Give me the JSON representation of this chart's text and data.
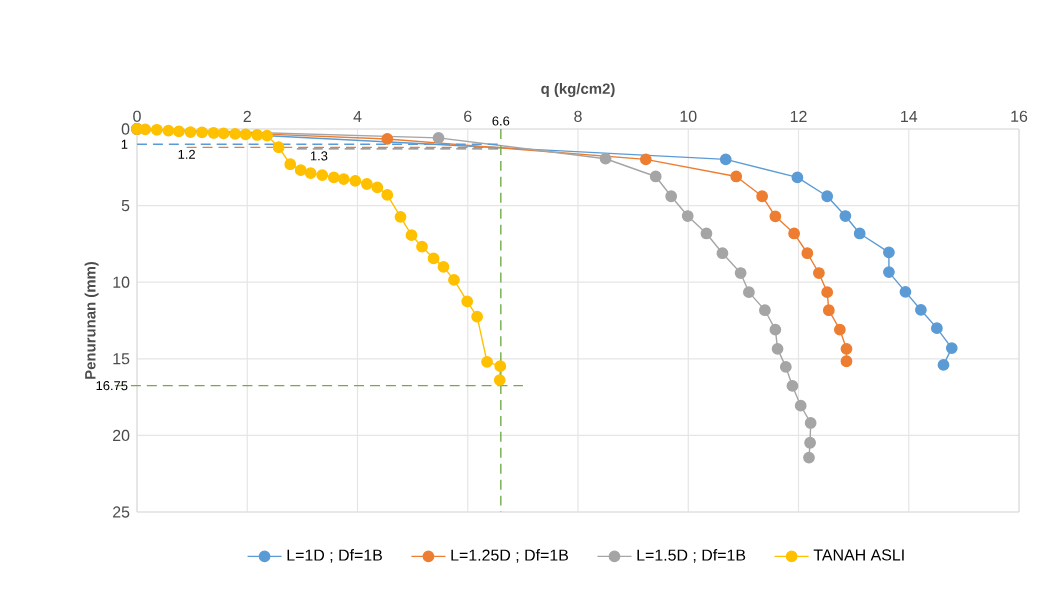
{
  "chart_data": {
    "type": "line",
    "xlabel": "q (kg/cm2)",
    "ylabel": "Penurunan (mm)",
    "xlim": [
      0,
      16
    ],
    "xticks": [
      0,
      2,
      4,
      6,
      8,
      10,
      12,
      14,
      16
    ],
    "ylim": [
      25,
      0
    ],
    "yticks": [
      0,
      5,
      10,
      15,
      20,
      25
    ],
    "grid": true,
    "legend": "bottom",
    "marker": "circle",
    "line_style": "solid",
    "series": [
      {
        "name": "L=1D ; Df=1B",
        "color": "#5b9bd5",
        "x": [
          0,
          10.68,
          11.98,
          12.52,
          12.85,
          13.11,
          13.64,
          13.64,
          13.94,
          14.22,
          14.51,
          14.78,
          14.63
        ],
        "values": [
          0,
          1.98,
          3.16,
          4.39,
          5.68,
          6.82,
          8.05,
          9.34,
          10.63,
          11.81,
          13.0,
          14.3,
          15.4
        ]
      },
      {
        "name": "L=1.25D ; Df=1B",
        "color": "#ed7d31",
        "x": [
          0,
          4.54,
          9.23,
          10.87,
          11.34,
          11.58,
          11.92,
          12.16,
          12.37,
          12.52,
          12.55,
          12.75,
          12.87,
          12.87
        ],
        "values": [
          0,
          0.65,
          1.98,
          3.1,
          4.39,
          5.7,
          6.82,
          8.11,
          9.4,
          10.65,
          11.83,
          13.1,
          14.35,
          15.16
        ]
      },
      {
        "name": "L=1.5D ; Df=1B",
        "color": "#a5a5a5",
        "x": [
          0,
          5.47,
          8.5,
          9.41,
          9.69,
          9.99,
          10.33,
          10.62,
          10.95,
          11.1,
          11.39,
          11.58,
          11.62,
          11.77,
          11.89,
          12.04,
          12.22,
          12.21,
          12.19
        ],
        "values": [
          0,
          0.58,
          1.94,
          3.1,
          4.39,
          5.68,
          6.82,
          8.11,
          9.4,
          10.65,
          11.83,
          13.1,
          14.35,
          15.53,
          16.77,
          18.06,
          19.19,
          20.48,
          21.45
        ]
      },
      {
        "name": "TANAH ASLI",
        "color": "#ffc000",
        "x": [
          0,
          0.15,
          0.36,
          0.57,
          0.76,
          0.97,
          1.18,
          1.39,
          1.57,
          1.78,
          1.97,
          2.18,
          2.36,
          2.57,
          2.78,
          2.97,
          3.15,
          3.36,
          3.57,
          3.75,
          3.96,
          4.17,
          4.36,
          4.54,
          4.78,
          4.98,
          5.17,
          5.38,
          5.56,
          5.75,
          5.99,
          6.17,
          6.35,
          6.59,
          6.58
        ],
        "values": [
          0,
          0.02,
          0.05,
          0.1,
          0.15,
          0.2,
          0.22,
          0.26,
          0.28,
          0.32,
          0.35,
          0.39,
          0.43,
          1.19,
          2.3,
          2.69,
          2.88,
          3.01,
          3.16,
          3.27,
          3.38,
          3.59,
          3.81,
          4.3,
          5.74,
          6.93,
          7.68,
          8.45,
          9.0,
          9.85,
          11.25,
          12.25,
          15.2,
          15.48,
          16.39
        ]
      }
    ],
    "ref_lines": [
      {
        "axis": "y",
        "value": 1,
        "label": "1",
        "color": "#5b9bd5",
        "line_style": "dashed"
      },
      {
        "axis": "y",
        "value": 1.2,
        "label": "1.2",
        "color": "#ed7d31",
        "line_style": "dashed"
      },
      {
        "axis": "y",
        "value": 1.3,
        "label": "1.3",
        "color": "#7f7f7f",
        "line_style": "dashed"
      },
      {
        "axis": "y",
        "value": 16.75,
        "label": "16.75",
        "color": "#70ad47",
        "line_style": "dashed"
      },
      {
        "axis": "x",
        "value": 6.6,
        "label": "6.6",
        "color": "#70ad47",
        "line_style": "dashed"
      }
    ]
  }
}
